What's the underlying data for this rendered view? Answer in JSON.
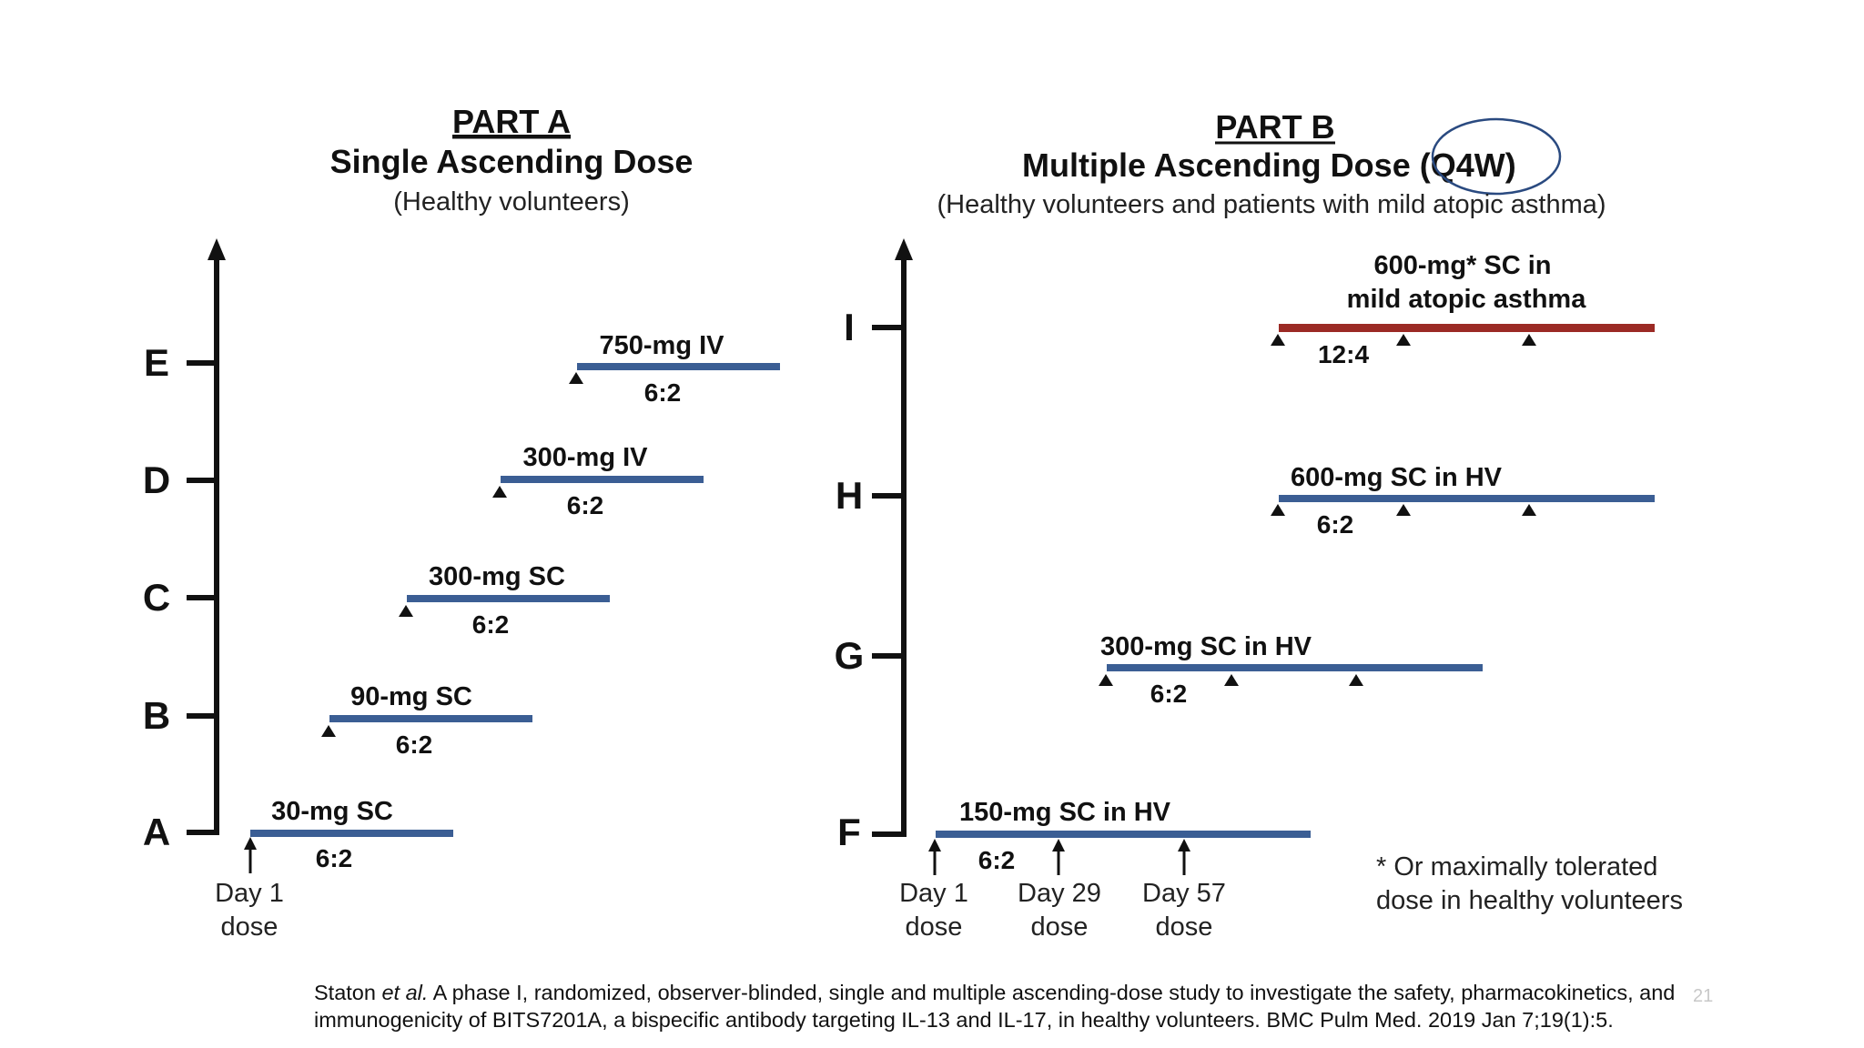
{
  "part_a": {
    "title": "PART A",
    "subtitle": "Single Ascending Dose",
    "population": "(Healthy volunteers)",
    "levels": [
      "A",
      "B",
      "C",
      "D",
      "E"
    ],
    "cohorts": [
      {
        "level": "A",
        "label": "30-mg SC",
        "ratio": "6:2"
      },
      {
        "level": "B",
        "label": "90-mg SC",
        "ratio": "6:2"
      },
      {
        "level": "C",
        "label": "300-mg SC",
        "ratio": "6:2"
      },
      {
        "level": "D",
        "label": "300-mg IV",
        "ratio": "6:2"
      },
      {
        "level": "E",
        "label": "750-mg IV",
        "ratio": "6:2"
      }
    ],
    "day_label": {
      "line1": "Day 1",
      "line2": "dose"
    }
  },
  "part_b": {
    "title": "PART B",
    "subtitle_main": "Multiple Ascending Dose ",
    "subtitle_highlight": "(Q4W)",
    "population": "(Healthy volunteers and patients with mild atopic asthma)",
    "levels": [
      "F",
      "G",
      "H",
      "I"
    ],
    "cohorts": [
      {
        "level": "F",
        "label": "150-mg SC in HV",
        "ratio": "6:2"
      },
      {
        "level": "G",
        "label": "300-mg SC in HV",
        "ratio": "6:2"
      },
      {
        "level": "H",
        "label": "600-mg SC in HV",
        "ratio": "6:2"
      },
      {
        "level": "I",
        "label_line1": "600-mg* SC in",
        "label_line2": "mild atopic asthma",
        "ratio": "12:4"
      }
    ],
    "day_labels": [
      {
        "line1": "Day 1",
        "line2": "dose"
      },
      {
        "line1": "Day 29",
        "line2": "dose"
      },
      {
        "line1": "Day 57",
        "line2": "dose"
      }
    ],
    "footnote": {
      "line1": "* Or maximally tolerated",
      "line2": "dose in healthy volunteers"
    }
  },
  "colors": {
    "bar_blue": "#3b5e94",
    "bar_red": "#9b2a25",
    "axis": "#111111",
    "annotation_circle": "#2a4a80"
  },
  "citation": {
    "author": "Staton ",
    "etal": "et al.",
    "text": " A phase I, randomized, observer-blinded, single and multiple ascending-dose study to investigate the safety, pharmacokinetics, and immunogenicity of BITS7201A, a bispecific antibody targeting IL-13 and IL-17, in healthy volunteers. BMC Pulm Med. 2019 Jan 7;19(1):5."
  },
  "slide_number": "21"
}
